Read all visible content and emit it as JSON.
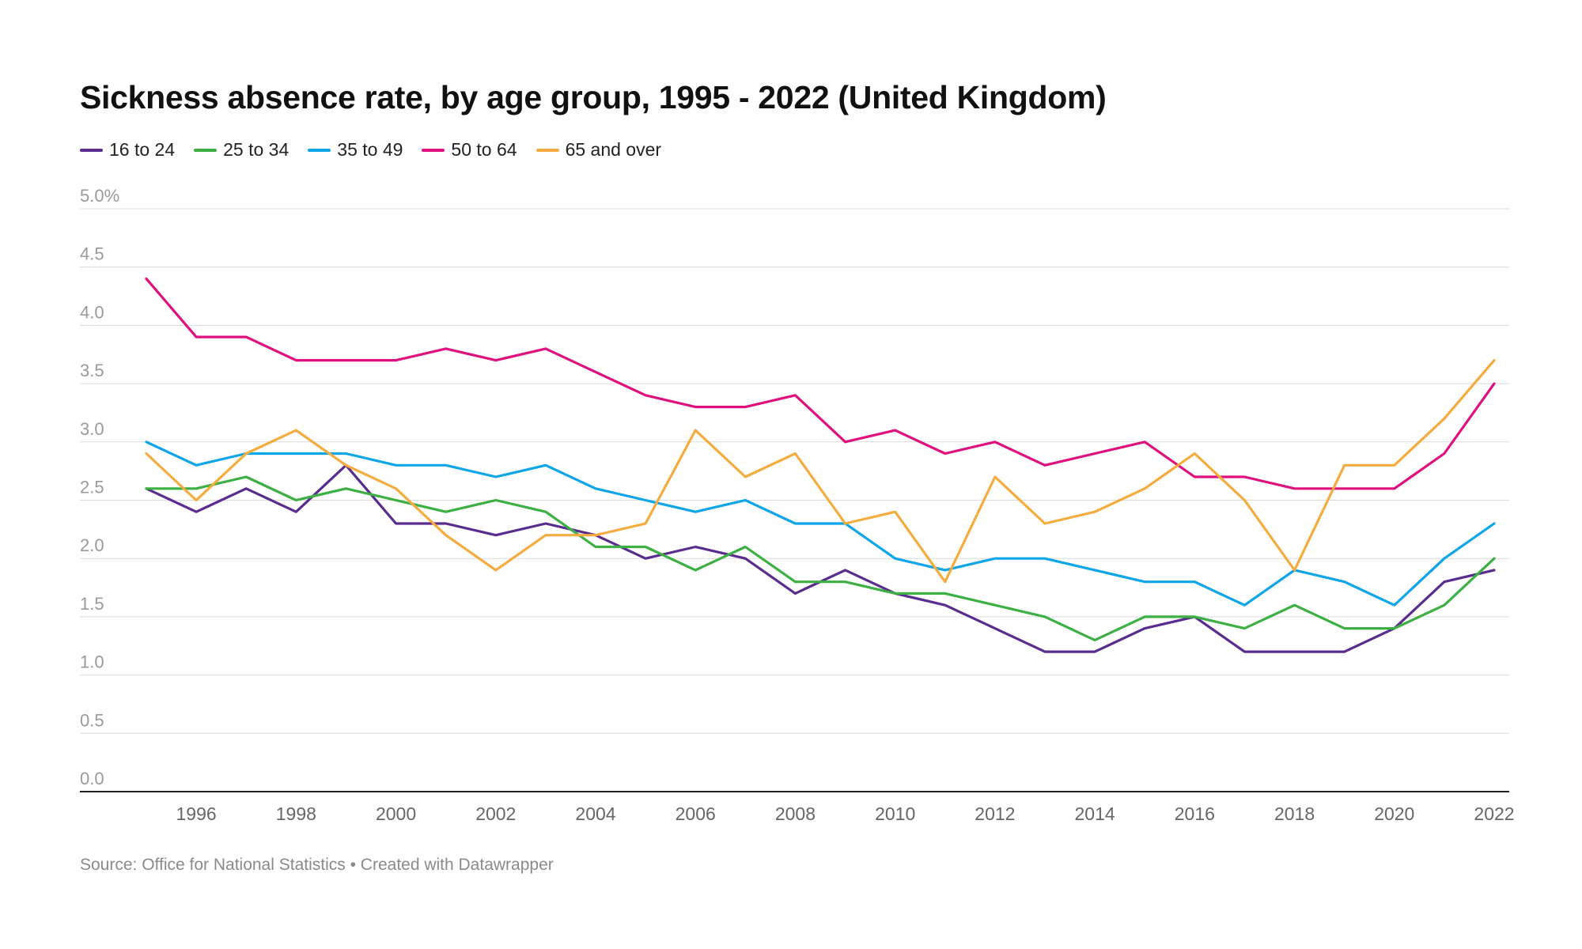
{
  "title": "Sickness absence rate, by age group, 1995 - 2022 (United Kingdom)",
  "footer": {
    "source": "Source: Office for National Statistics",
    "separator": " • ",
    "credit": "Created with Datawrapper"
  },
  "chart_data": {
    "type": "line",
    "title": "Sickness absence rate, by age group, 1995 - 2022 (United Kingdom)",
    "x": [
      1995,
      1996,
      1997,
      1998,
      1999,
      2000,
      2001,
      2002,
      2003,
      2004,
      2005,
      2006,
      2007,
      2008,
      2009,
      2010,
      2011,
      2012,
      2013,
      2014,
      2015,
      2016,
      2017,
      2018,
      2019,
      2020,
      2021,
      2022
    ],
    "x_tick_labels": [
      "1996",
      "1998",
      "2000",
      "2002",
      "2004",
      "2006",
      "2008",
      "2010",
      "2012",
      "2014",
      "2016",
      "2018",
      "2020",
      "2022"
    ],
    "y_tick_labels": [
      "5.0%",
      "4.5",
      "4.0",
      "3.5",
      "3.0",
      "2.5",
      "2.0",
      "1.5",
      "1.0",
      "0.5",
      "0.0"
    ],
    "ylim": [
      0,
      5
    ],
    "xlabel": "",
    "ylabel": "",
    "grid": true,
    "legend_position": "top-left",
    "series": [
      {
        "name": "16 to 24",
        "color": "#5b2c8f",
        "values": [
          2.6,
          2.4,
          2.6,
          2.4,
          2.8,
          2.3,
          2.3,
          2.2,
          2.3,
          2.2,
          2.0,
          2.1,
          2.0,
          1.7,
          1.9,
          1.7,
          1.6,
          1.4,
          1.2,
          1.2,
          1.4,
          1.5,
          1.2,
          1.2,
          1.2,
          1.4,
          1.8,
          1.9
        ]
      },
      {
        "name": "25 to 34",
        "color": "#3cb043",
        "values": [
          2.6,
          2.6,
          2.7,
          2.5,
          2.6,
          2.5,
          2.4,
          2.5,
          2.4,
          2.1,
          2.1,
          1.9,
          2.1,
          1.8,
          1.8,
          1.7,
          1.7,
          1.6,
          1.5,
          1.3,
          1.5,
          1.5,
          1.4,
          1.6,
          1.4,
          1.4,
          1.6,
          2.0
        ]
      },
      {
        "name": "35 to 49",
        "color": "#0ea5e9",
        "values": [
          3.0,
          2.8,
          2.9,
          2.9,
          2.9,
          2.8,
          2.8,
          2.7,
          2.8,
          2.6,
          2.5,
          2.4,
          2.5,
          2.3,
          2.3,
          2.0,
          1.9,
          2.0,
          2.0,
          1.9,
          1.8,
          1.8,
          1.6,
          1.9,
          1.8,
          1.6,
          2.0,
          2.3
        ]
      },
      {
        "name": "50 to 64",
        "color": "#e0117f",
        "values": [
          4.4,
          3.9,
          3.9,
          3.7,
          3.7,
          3.7,
          3.8,
          3.7,
          3.8,
          3.6,
          3.4,
          3.3,
          3.3,
          3.4,
          3.0,
          3.1,
          2.9,
          3.0,
          2.8,
          2.9,
          3.0,
          2.7,
          2.7,
          2.6,
          2.6,
          2.6,
          2.9,
          3.5
        ]
      },
      {
        "name": "65 and over",
        "color": "#f5ac3f",
        "values": [
          2.9,
          2.5,
          2.9,
          3.1,
          2.8,
          2.6,
          2.2,
          1.9,
          2.2,
          2.2,
          2.3,
          3.1,
          2.7,
          2.9,
          2.3,
          2.4,
          1.8,
          2.7,
          2.3,
          2.4,
          2.6,
          2.9,
          2.5,
          1.9,
          2.8,
          2.8,
          3.2,
          3.7
        ]
      }
    ]
  }
}
